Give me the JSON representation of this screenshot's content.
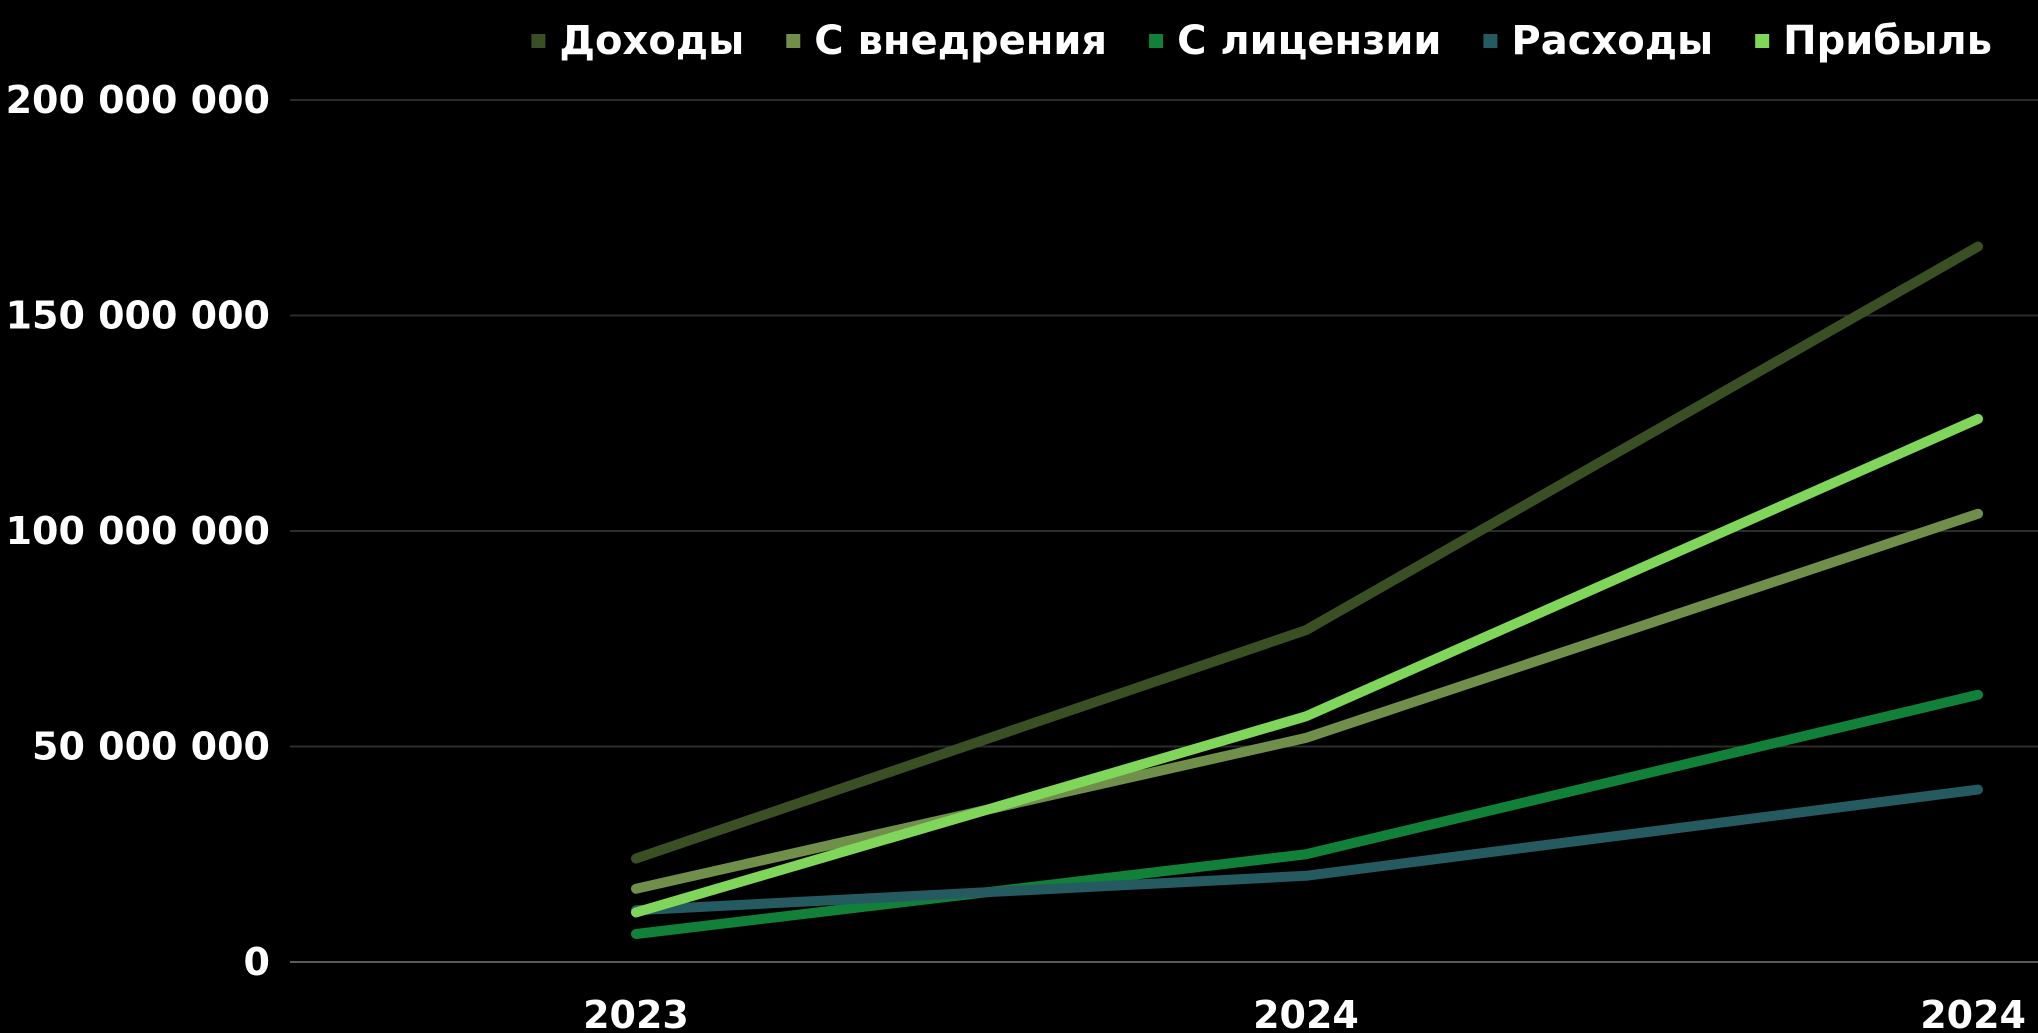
{
  "chart_data": {
    "type": "line",
    "categories": [
      "2023",
      "2024",
      "2024"
    ],
    "ylim": [
      0,
      200000000
    ],
    "y_ticks": [
      0,
      50000000,
      100000000,
      150000000,
      200000000
    ],
    "y_tick_labels": [
      "0",
      "50 000 000",
      "100 000 000",
      "150 000 000",
      "200 000 000"
    ],
    "grid": true,
    "legend_position": "top-right",
    "series": [
      {
        "name": "Доходы",
        "color": "#3a4f24",
        "values": [
          24000000,
          77000000,
          166000000
        ]
      },
      {
        "name": "С внедрения",
        "color": "#6f8f4a",
        "values": [
          17000000,
          52000000,
          104000000
        ]
      },
      {
        "name": "С лицензии",
        "color": "#11813a",
        "values": [
          6500000,
          25000000,
          62000000
        ]
      },
      {
        "name": "Расходы",
        "color": "#245a60",
        "values": [
          12000000,
          20000000,
          40000000
        ]
      },
      {
        "name": "Прибыль",
        "color": "#7fd65b",
        "values": [
          11500000,
          57000000,
          126000000
        ]
      }
    ]
  }
}
